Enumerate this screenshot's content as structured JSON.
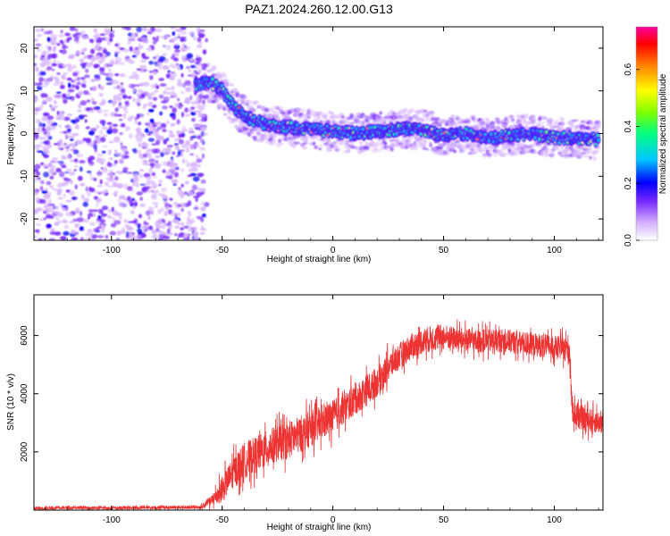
{
  "title": "PAZ1.2024.260.12.00.G13",
  "chart_data": [
    {
      "type": "heatmap",
      "xlabel": "Height of straight line (km)",
      "ylabel": "Frequency (Hz)",
      "xlim": [
        -135,
        122
      ],
      "ylim": [
        -25,
        25
      ],
      "xticks": [
        -100,
        -50,
        0,
        50,
        100
      ],
      "yticks": [
        -20,
        -10,
        0,
        10,
        20
      ],
      "x_tick_labels": [
        "-100",
        "-50",
        "0",
        "50",
        "100"
      ],
      "y_tick_labels": [
        "-20",
        "-10",
        "0",
        "10",
        "20"
      ],
      "noise_region_x": [
        -135,
        -57
      ],
      "ridge": {
        "x": [
          -62,
          -55,
          -50,
          -45,
          -40,
          -35,
          -30,
          -20,
          -10,
          0,
          10,
          20,
          30,
          40,
          50,
          60,
          70,
          80,
          90,
          100,
          110,
          120
        ],
        "freq": [
          11.5,
          12,
          10,
          6.5,
          4,
          3,
          2,
          1.5,
          1,
          0.5,
          0,
          0.5,
          1,
          1,
          -0.5,
          0,
          -1,
          -0.5,
          0,
          -1,
          -1,
          -1.5
        ]
      },
      "colorbar": {
        "label": "Normalized spectral amplitude",
        "range": [
          0,
          0.75
        ],
        "ticks": [
          0.0,
          0.2,
          0.4,
          0.6
        ],
        "tick_labels": [
          "0.0",
          "0.2",
          "0.4",
          "0.6"
        ],
        "colors": [
          "#ffffff",
          "#d7b4ff",
          "#7b2bff",
          "#0000ff",
          "#00c8ff",
          "#00ff80",
          "#80ff00",
          "#ffff00",
          "#ff8000",
          "#ff0000",
          "#ff00a0"
        ]
      }
    },
    {
      "type": "line",
      "xlabel": "Height of straight line (km)",
      "ylabel": "SNR (10 * v/v)",
      "xlim": [
        -135,
        122
      ],
      "ylim": [
        0,
        7400
      ],
      "xticks": [
        -100,
        -50,
        0,
        50,
        100
      ],
      "yticks": [
        2000,
        4000,
        6000
      ],
      "x_tick_labels": [
        "-100",
        "-50",
        "0",
        "50",
        "100"
      ],
      "y_tick_labels": [
        "2000",
        "4000",
        "6000"
      ],
      "series": [
        {
          "color": "#ee3333",
          "x": [
            -135,
            -120,
            -100,
            -80,
            -60,
            -55,
            -50,
            -45,
            -40,
            -35,
            -30,
            -25,
            -20,
            -15,
            -10,
            -5,
            0,
            5,
            10,
            15,
            20,
            25,
            30,
            35,
            40,
            45,
            50,
            55,
            60,
            65,
            70,
            75,
            80,
            85,
            90,
            95,
            100,
            105,
            107,
            108,
            110,
            115,
            122
          ],
          "values": [
            60,
            80,
            70,
            90,
            100,
            300,
            700,
            1300,
            1700,
            1900,
            2100,
            2300,
            2400,
            2600,
            2800,
            3000,
            3200,
            3500,
            3800,
            4100,
            4400,
            4900,
            5300,
            5600,
            5800,
            5900,
            5950,
            5900,
            5850,
            5800,
            5800,
            5850,
            5800,
            5750,
            5700,
            5650,
            5600,
            5550,
            5500,
            3500,
            3200,
            3100,
            3000
          ],
          "noise_amplitude": [
            60,
            60,
            60,
            60,
            60,
            200,
            500,
            600,
            700,
            700,
            700,
            700,
            700,
            700,
            700,
            650,
            650,
            600,
            600,
            600,
            550,
            550,
            500,
            500,
            500,
            500,
            500,
            450,
            450,
            450,
            450,
            450,
            450,
            450,
            450,
            450,
            450,
            450,
            700,
            500,
            450,
            450,
            450
          ]
        }
      ]
    }
  ]
}
